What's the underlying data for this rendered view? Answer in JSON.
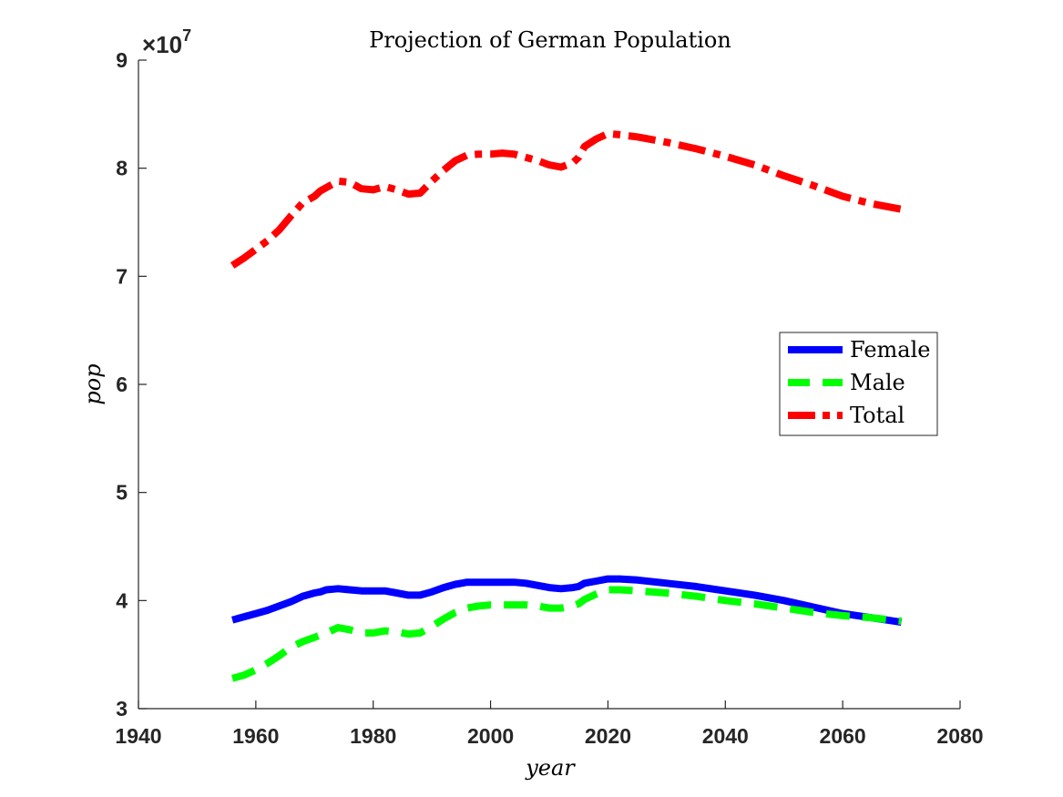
{
  "chart_data": {
    "type": "line",
    "title": "Projection of German Population",
    "xlabel": "year",
    "ylabel": "pop",
    "xlim": [
      1940,
      2080
    ],
    "ylim": [
      3,
      9
    ],
    "y_multiplier_label": "×10",
    "y_multiplier_exponent": "7",
    "xticks": [
      "1940",
      "1960",
      "1980",
      "2000",
      "2020",
      "2040",
      "2060",
      "2080"
    ],
    "yticks": [
      "3",
      "4",
      "5",
      "6",
      "7",
      "8",
      "9"
    ],
    "legend_position": "right",
    "series": [
      {
        "name": "Female",
        "color": "#0000ff",
        "style": "solid",
        "x": [
          1956,
          1958,
          1960,
          1962,
          1964,
          1966,
          1968,
          1970,
          1971,
          1972,
          1974,
          1976,
          1978,
          1980,
          1982,
          1984,
          1986,
          1988,
          1990,
          1992,
          1994,
          1996,
          1998,
          2000,
          2002,
          2004,
          2006,
          2008,
          2010,
          2012,
          2014,
          2015,
          2016,
          2018,
          2020,
          2022,
          2025,
          2030,
          2035,
          2040,
          2045,
          2050,
          2055,
          2060,
          2065,
          2070
        ],
        "y": [
          3.82,
          3.85,
          3.88,
          3.91,
          3.95,
          3.99,
          4.04,
          4.07,
          4.08,
          4.1,
          4.11,
          4.1,
          4.09,
          4.09,
          4.09,
          4.07,
          4.05,
          4.05,
          4.08,
          4.12,
          4.15,
          4.17,
          4.17,
          4.17,
          4.17,
          4.17,
          4.16,
          4.14,
          4.12,
          4.11,
          4.12,
          4.13,
          4.16,
          4.18,
          4.2,
          4.2,
          4.19,
          4.16,
          4.13,
          4.09,
          4.05,
          4.0,
          3.94,
          3.88,
          3.84,
          3.8
        ]
      },
      {
        "name": "Male",
        "color": "#00ff00",
        "style": "dashed",
        "x": [
          1956,
          1958,
          1960,
          1962,
          1964,
          1966,
          1968,
          1970,
          1972,
          1974,
          1976,
          1978,
          1980,
          1982,
          1984,
          1986,
          1988,
          1990,
          1992,
          1994,
          1996,
          1998,
          2000,
          2002,
          2004,
          2006,
          2008,
          2010,
          2012,
          2014,
          2015,
          2016,
          2018,
          2020,
          2022,
          2025,
          2030,
          2035,
          2040,
          2045,
          2050,
          2055,
          2060,
          2065,
          2070
        ],
        "y": [
          3.28,
          3.31,
          3.36,
          3.42,
          3.49,
          3.57,
          3.62,
          3.66,
          3.7,
          3.75,
          3.73,
          3.7,
          3.7,
          3.72,
          3.71,
          3.69,
          3.7,
          3.76,
          3.83,
          3.89,
          3.93,
          3.95,
          3.96,
          3.96,
          3.96,
          3.96,
          3.95,
          3.93,
          3.93,
          3.95,
          3.97,
          4.01,
          4.06,
          4.1,
          4.1,
          4.09,
          4.07,
          4.04,
          4.0,
          3.97,
          3.93,
          3.89,
          3.86,
          3.84,
          3.81
        ]
      },
      {
        "name": "Total",
        "color": "#ff0000",
        "style": "dash-dot",
        "x": [
          1956,
          1958,
          1960,
          1962,
          1964,
          1966,
          1968,
          1970,
          1971,
          1972,
          1974,
          1976,
          1978,
          1980,
          1982,
          1984,
          1986,
          1988,
          1990,
          1992,
          1994,
          1996,
          1998,
          2000,
          2002,
          2004,
          2006,
          2008,
          2010,
          2012,
          2014,
          2015,
          2016,
          2018,
          2020,
          2022,
          2025,
          2030,
          2035,
          2040,
          2045,
          2050,
          2055,
          2060,
          2065,
          2070
        ],
        "y": [
          7.1,
          7.17,
          7.25,
          7.33,
          7.43,
          7.56,
          7.68,
          7.74,
          7.79,
          7.82,
          7.88,
          7.87,
          7.81,
          7.8,
          7.83,
          7.8,
          7.76,
          7.77,
          7.88,
          7.98,
          8.07,
          8.12,
          8.13,
          8.13,
          8.14,
          8.13,
          8.1,
          8.07,
          8.03,
          8.01,
          8.05,
          8.1,
          8.2,
          8.27,
          8.32,
          8.31,
          8.29,
          8.24,
          8.18,
          8.11,
          8.03,
          7.93,
          7.84,
          7.74,
          7.67,
          7.62
        ]
      }
    ]
  }
}
